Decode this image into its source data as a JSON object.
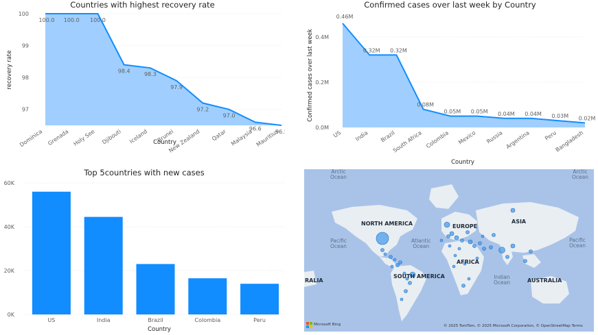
{
  "visuals": {
    "recovery": {
      "title": "Countries with highest recovery rate",
      "xlabel": "Country",
      "ylabel": "recovery rate"
    },
    "confirmed": {
      "title": "Confirmed cases over last week by Country",
      "xlabel": "Country",
      "ylabel": "Confirmed cases over last week"
    },
    "newcases": {
      "title": "Top 5countries with new cases",
      "xlabel": "Country"
    },
    "map": {
      "ocean_labels": [
        {
          "id": "arctic-1",
          "text": "Arctic\nOcean"
        },
        {
          "id": "arctic-2",
          "text": "Arctic\nOcean"
        },
        {
          "id": "pacific-1",
          "text": "Pacific\nOcean"
        },
        {
          "id": "atlantic",
          "text": "Atlantic\nOcean"
        },
        {
          "id": "pacific-2",
          "text": "Pacific\nOcean"
        },
        {
          "id": "indian",
          "text": "Indian\nOcean"
        }
      ],
      "continents": [
        "NORTH AMERICA",
        "EUROPE",
        "ASIA",
        "AFRICA",
        "SOUTH AMERICA",
        "AUSTRALIA",
        "RALIA"
      ],
      "logo_text": "Microsoft Bing",
      "attribution": "© 2025 TomTom, © 2025 Microsoft Corporation, © OpenStreetMap  Terms"
    }
  },
  "colors": {
    "accent": "#118DFF",
    "area_fill": "#A0CFFF",
    "grid": "#E6E6E6",
    "axis_text": "#605E5C",
    "map_water": "#A9C3E8",
    "map_land": "#E9EEF2"
  },
  "chart_data": [
    {
      "type": "area",
      "title": "Countries with highest recovery rate",
      "xlabel": "Country",
      "ylabel": "recovery rate",
      "categories": [
        "Dominica",
        "Grenada",
        "Holy See",
        "Djibouti",
        "Iceland",
        "Brunei",
        "New Zealand",
        "Qatar",
        "Malaysia",
        "Mauritius"
      ],
      "values": [
        100.0,
        100.0,
        100.0,
        98.4,
        98.3,
        97.9,
        97.2,
        97.0,
        96.6,
        96.5
      ],
      "data_labels": [
        "100.0",
        "100.0",
        "100.0",
        "98.4",
        "98.3",
        "97.9",
        "97.2",
        "97.0",
        "96.6",
        "96.5"
      ],
      "yticks": [
        "100",
        "99",
        "98",
        "97"
      ],
      "ylim": [
        96.5,
        100
      ],
      "grid": true
    },
    {
      "type": "area",
      "title": "Confirmed cases over last week by Country",
      "xlabel": "Country",
      "ylabel": "Confirmed cases over last week",
      "categories": [
        "US",
        "India",
        "Brazil",
        "South Africa",
        "Colombia",
        "Mexico",
        "Russia",
        "Argentina",
        "Peru",
        "Bangladesh"
      ],
      "values": [
        460000,
        320000,
        320000,
        80000,
        50000,
        50000,
        40000,
        40000,
        30000,
        20000
      ],
      "data_labels": [
        "0.46M",
        "0.32M",
        "0.32M",
        "0.08M",
        "0.05M",
        "0.05M",
        "0.04M",
        "0.04M",
        "0.03M",
        "0.02M"
      ],
      "yticks": [
        "0.4M",
        "0.2M",
        "0.0M"
      ],
      "ylim": [
        0,
        460000
      ],
      "grid": true
    },
    {
      "type": "bar",
      "title": "Top 5countries with new cases",
      "xlabel": "Country",
      "categories": [
        "US",
        "India",
        "Brazil",
        "Colombia",
        "Peru"
      ],
      "values": [
        56000,
        44500,
        23000,
        16500,
        14000
      ],
      "yticks": [
        "60K",
        "40K",
        "20K",
        "0K"
      ],
      "ylim": [
        0,
        60000
      ],
      "grid": true
    }
  ]
}
